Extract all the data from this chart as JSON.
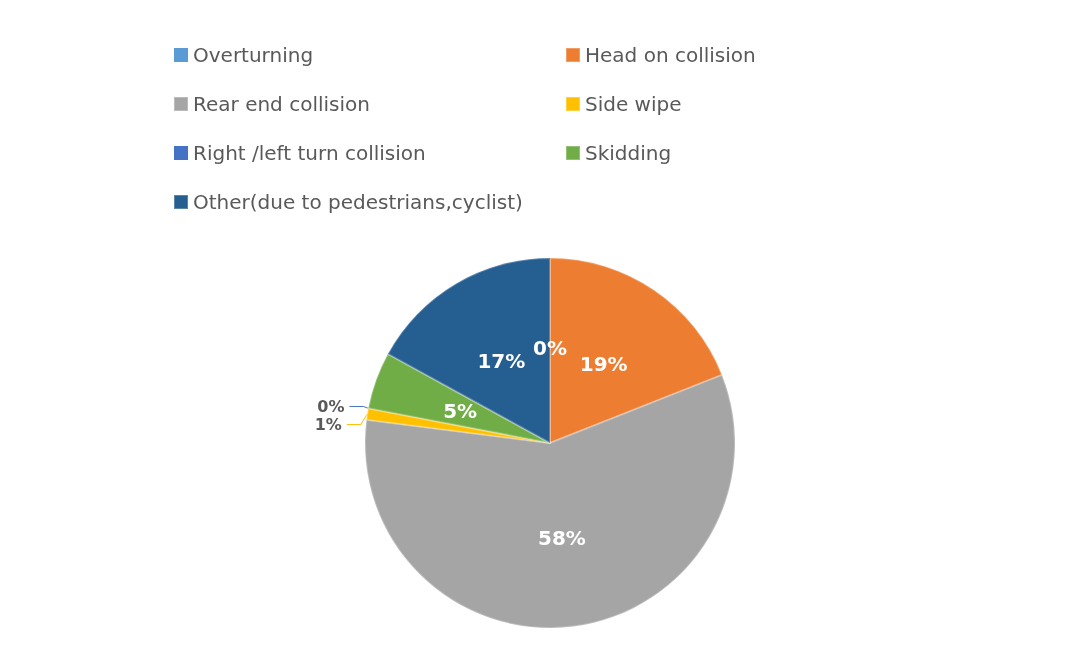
{
  "chart_data": {
    "type": "pie",
    "categories": [
      "Overturning",
      "Head on collision",
      "Rear end collision",
      "Side wipe",
      "Right /left turn collision",
      "Skidding",
      "Other(due to pedestrians,cyclist)"
    ],
    "values": [
      0,
      19,
      58,
      1,
      0,
      5,
      17
    ],
    "colors": [
      "#5b9bd5",
      "#ed7d31",
      "#a5a5a5",
      "#ffc000",
      "#4472c4",
      "#70ad47",
      "#255e91"
    ],
    "value_labels": [
      "0%",
      "19%",
      "58%",
      "1%",
      "0%",
      "5%",
      "17%"
    ],
    "legend": "top"
  }
}
